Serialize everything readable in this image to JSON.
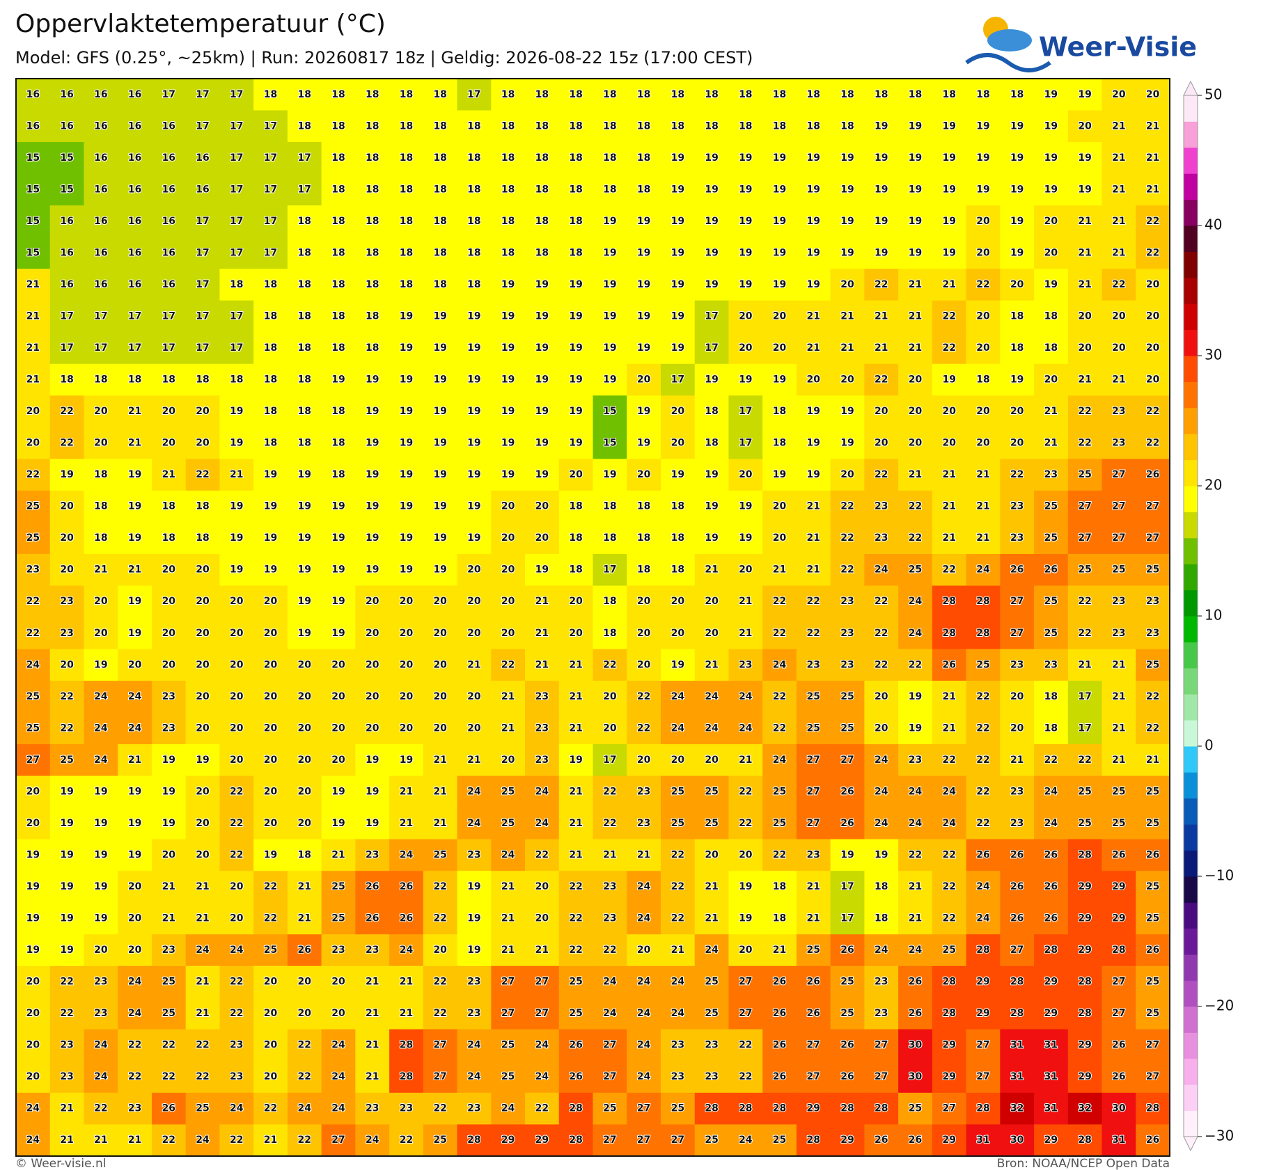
{
  "title": "Oppervlaktetemperatuur (°C)",
  "subtitle": "Model: GFS (0.25°, ~25km)  |  Run: 20260817 18z  |  Geldig: 2026-08-22 15z (17:00 CEST)",
  "logo": "Weer-Visie",
  "footer_left": "© Weer-visie.nl",
  "footer_right": "Bron: NOAA/NCEP Open Data",
  "grid": [
    [
      16,
      16,
      16,
      16,
      17,
      17,
      17,
      18,
      18,
      18,
      18,
      18,
      18,
      17,
      18,
      18,
      18,
      18,
      18,
      18,
      18,
      18,
      18,
      18,
      18,
      18,
      18,
      18,
      18,
      18,
      19,
      19,
      20,
      20
    ],
    [
      16,
      16,
      16,
      16,
      16,
      17,
      17,
      17,
      18,
      18,
      18,
      18,
      18,
      18,
      18,
      18,
      18,
      18,
      18,
      18,
      18,
      18,
      18,
      18,
      18,
      19,
      19,
      19,
      19,
      19,
      19,
      20,
      21,
      21
    ],
    [
      15,
      15,
      16,
      16,
      16,
      16,
      17,
      17,
      17,
      18,
      18,
      18,
      18,
      18,
      18,
      18,
      18,
      18,
      18,
      19,
      19,
      19,
      19,
      19,
      19,
      19,
      19,
      19,
      19,
      19,
      19,
      19,
      21,
      21
    ],
    [
      15,
      15,
      16,
      16,
      16,
      16,
      17,
      17,
      17,
      18,
      18,
      18,
      18,
      18,
      18,
      18,
      18,
      18,
      18,
      19,
      19,
      19,
      19,
      19,
      19,
      19,
      19,
      19,
      19,
      19,
      19,
      19,
      21,
      21
    ],
    [
      15,
      16,
      16,
      16,
      16,
      17,
      17,
      17,
      18,
      18,
      18,
      18,
      18,
      18,
      18,
      18,
      18,
      19,
      19,
      19,
      19,
      19,
      19,
      19,
      19,
      19,
      19,
      19,
      20,
      19,
      20,
      21,
      21,
      22
    ],
    [
      15,
      16,
      16,
      16,
      16,
      17,
      17,
      17,
      18,
      18,
      18,
      18,
      18,
      18,
      18,
      18,
      18,
      19,
      19,
      19,
      19,
      19,
      19,
      19,
      19,
      19,
      19,
      19,
      20,
      19,
      20,
      21,
      21,
      22
    ],
    [
      21,
      16,
      16,
      16,
      16,
      17,
      18,
      18,
      18,
      18,
      18,
      18,
      18,
      18,
      19,
      19,
      19,
      19,
      19,
      19,
      19,
      19,
      19,
      19,
      20,
      22,
      21,
      21,
      22,
      20,
      19,
      21,
      22,
      20
    ],
    [
      21,
      17,
      17,
      17,
      17,
      17,
      17,
      18,
      18,
      18,
      18,
      19,
      19,
      19,
      19,
      19,
      19,
      19,
      19,
      19,
      17,
      20,
      20,
      21,
      21,
      21,
      21,
      22,
      20,
      18,
      18,
      20,
      20,
      20
    ],
    [
      21,
      17,
      17,
      17,
      17,
      17,
      17,
      18,
      18,
      18,
      18,
      19,
      19,
      19,
      19,
      19,
      19,
      19,
      19,
      19,
      17,
      20,
      20,
      21,
      21,
      21,
      21,
      22,
      20,
      18,
      18,
      20,
      20,
      20
    ],
    [
      21,
      18,
      18,
      18,
      18,
      18,
      18,
      18,
      18,
      19,
      19,
      19,
      19,
      19,
      19,
      19,
      19,
      19,
      20,
      17,
      19,
      19,
      19,
      20,
      20,
      22,
      20,
      19,
      18,
      19,
      20,
      21,
      21,
      20
    ],
    [
      20,
      22,
      20,
      21,
      20,
      20,
      19,
      18,
      18,
      18,
      19,
      19,
      19,
      19,
      19,
      19,
      19,
      15,
      19,
      20,
      18,
      17,
      18,
      19,
      19,
      20,
      20,
      20,
      20,
      20,
      21,
      22,
      23,
      22
    ],
    [
      20,
      22,
      20,
      21,
      20,
      20,
      19,
      18,
      18,
      18,
      19,
      19,
      19,
      19,
      19,
      19,
      19,
      15,
      19,
      20,
      18,
      17,
      18,
      19,
      19,
      20,
      20,
      20,
      20,
      20,
      21,
      22,
      23,
      22
    ],
    [
      22,
      19,
      18,
      19,
      21,
      22,
      21,
      19,
      19,
      18,
      19,
      19,
      19,
      19,
      19,
      19,
      20,
      19,
      20,
      19,
      19,
      20,
      19,
      19,
      20,
      22,
      21,
      21,
      21,
      22,
      23,
      25,
      27,
      26
    ],
    [
      25,
      20,
      18,
      19,
      18,
      18,
      19,
      19,
      19,
      19,
      19,
      19,
      19,
      19,
      20,
      20,
      18,
      18,
      18,
      18,
      19,
      19,
      20,
      21,
      22,
      23,
      22,
      21,
      21,
      23,
      25,
      27,
      27,
      27
    ],
    [
      25,
      20,
      18,
      19,
      18,
      18,
      19,
      19,
      19,
      19,
      19,
      19,
      19,
      19,
      20,
      20,
      18,
      18,
      18,
      18,
      19,
      19,
      20,
      21,
      22,
      23,
      22,
      21,
      21,
      23,
      25,
      27,
      27,
      27
    ],
    [
      23,
      20,
      21,
      21,
      20,
      20,
      19,
      19,
      19,
      19,
      19,
      19,
      19,
      20,
      20,
      19,
      18,
      17,
      18,
      18,
      21,
      20,
      21,
      21,
      22,
      24,
      25,
      22,
      24,
      26,
      26,
      25,
      25,
      25
    ],
    [
      22,
      23,
      20,
      19,
      20,
      20,
      20,
      20,
      19,
      19,
      20,
      20,
      20,
      20,
      20,
      21,
      20,
      18,
      20,
      20,
      20,
      21,
      22,
      22,
      23,
      22,
      24,
      28,
      28,
      27,
      25,
      22,
      23,
      23
    ],
    [
      22,
      23,
      20,
      19,
      20,
      20,
      20,
      20,
      19,
      19,
      20,
      20,
      20,
      20,
      20,
      21,
      20,
      18,
      20,
      20,
      20,
      21,
      22,
      22,
      23,
      22,
      24,
      28,
      28,
      27,
      25,
      22,
      23,
      23
    ],
    [
      24,
      20,
      19,
      20,
      20,
      20,
      20,
      20,
      20,
      20,
      20,
      20,
      20,
      21,
      22,
      21,
      21,
      22,
      20,
      19,
      21,
      23,
      24,
      23,
      23,
      22,
      22,
      26,
      25,
      23,
      23,
      21,
      21,
      25
    ],
    [
      25,
      22,
      24,
      24,
      23,
      20,
      20,
      20,
      20,
      20,
      20,
      20,
      20,
      20,
      21,
      23,
      21,
      20,
      22,
      24,
      24,
      24,
      22,
      25,
      25,
      20,
      19,
      21,
      22,
      20,
      18,
      17,
      21,
      22
    ],
    [
      25,
      22,
      24,
      24,
      23,
      20,
      20,
      20,
      20,
      20,
      20,
      20,
      20,
      20,
      21,
      23,
      21,
      20,
      22,
      24,
      24,
      24,
      22,
      25,
      25,
      20,
      19,
      21,
      22,
      20,
      18,
      17,
      21,
      22
    ],
    [
      27,
      25,
      24,
      21,
      19,
      19,
      20,
      20,
      20,
      20,
      19,
      19,
      21,
      21,
      20,
      23,
      19,
      17,
      20,
      20,
      20,
      21,
      24,
      27,
      27,
      24,
      23,
      22,
      22,
      21,
      22,
      22,
      21,
      21
    ],
    [
      20,
      19,
      19,
      19,
      19,
      20,
      22,
      20,
      20,
      19,
      19,
      21,
      21,
      24,
      25,
      24,
      21,
      22,
      23,
      25,
      25,
      22,
      25,
      27,
      26,
      24,
      24,
      24,
      22,
      23,
      24,
      25,
      25,
      25
    ],
    [
      20,
      19,
      19,
      19,
      19,
      20,
      22,
      20,
      20,
      19,
      19,
      21,
      21,
      24,
      25,
      24,
      21,
      22,
      23,
      25,
      25,
      22,
      25,
      27,
      26,
      24,
      24,
      24,
      22,
      23,
      24,
      25,
      25,
      25
    ],
    [
      19,
      19,
      19,
      19,
      20,
      20,
      22,
      19,
      18,
      21,
      23,
      24,
      25,
      23,
      24,
      22,
      21,
      21,
      21,
      22,
      20,
      20,
      22,
      23,
      19,
      19,
      22,
      22,
      26,
      26,
      26,
      28,
      26,
      26
    ],
    [
      19,
      19,
      19,
      20,
      21,
      21,
      20,
      22,
      21,
      25,
      26,
      26,
      22,
      19,
      21,
      20,
      22,
      23,
      24,
      22,
      21,
      19,
      18,
      21,
      17,
      18,
      21,
      22,
      24,
      26,
      26,
      29,
      29,
      25
    ],
    [
      19,
      19,
      19,
      20,
      21,
      21,
      20,
      22,
      21,
      25,
      26,
      26,
      22,
      19,
      21,
      20,
      22,
      23,
      24,
      22,
      21,
      19,
      18,
      21,
      17,
      18,
      21,
      22,
      24,
      26,
      26,
      29,
      29,
      25
    ],
    [
      19,
      19,
      20,
      20,
      23,
      24,
      24,
      25,
      26,
      23,
      23,
      24,
      20,
      19,
      21,
      21,
      22,
      22,
      20,
      21,
      24,
      20,
      21,
      25,
      26,
      24,
      24,
      25,
      28,
      27,
      28,
      29,
      28,
      26
    ],
    [
      20,
      22,
      23,
      24,
      25,
      21,
      22,
      20,
      20,
      20,
      21,
      21,
      22,
      23,
      27,
      27,
      25,
      24,
      24,
      24,
      25,
      27,
      26,
      26,
      25,
      23,
      26,
      28,
      29,
      28,
      29,
      28,
      27,
      25
    ],
    [
      20,
      22,
      23,
      24,
      25,
      21,
      22,
      20,
      20,
      20,
      21,
      21,
      22,
      23,
      27,
      27,
      25,
      24,
      24,
      24,
      25,
      27,
      26,
      26,
      25,
      23,
      26,
      28,
      29,
      28,
      29,
      28,
      27,
      25
    ],
    [
      20,
      23,
      24,
      22,
      22,
      22,
      23,
      20,
      22,
      24,
      21,
      28,
      27,
      24,
      25,
      24,
      26,
      27,
      24,
      23,
      23,
      22,
      26,
      27,
      26,
      27,
      30,
      29,
      27,
      31,
      31,
      29,
      26,
      27
    ],
    [
      20,
      23,
      24,
      22,
      22,
      22,
      23,
      20,
      22,
      24,
      21,
      28,
      27,
      24,
      25,
      24,
      26,
      27,
      24,
      23,
      23,
      22,
      26,
      27,
      26,
      27,
      30,
      29,
      27,
      31,
      31,
      29,
      26,
      27
    ],
    [
      24,
      21,
      22,
      23,
      26,
      25,
      24,
      22,
      24,
      24,
      23,
      23,
      22,
      23,
      24,
      22,
      28,
      25,
      27,
      25,
      28,
      28,
      28,
      29,
      28,
      28,
      25,
      27,
      28,
      32,
      31,
      32,
      30,
      28
    ],
    [
      24,
      21,
      21,
      21,
      22,
      24,
      22,
      21,
      22,
      27,
      24,
      22,
      25,
      28,
      29,
      29,
      28,
      27,
      27,
      27,
      25,
      24,
      25,
      28,
      29,
      26,
      26,
      29,
      31,
      30,
      29,
      28,
      31,
      26
    ]
  ],
  "colorbar": {
    "lim": [
      -30,
      50
    ],
    "ticks": [
      50,
      40,
      30,
      20,
      10,
      0,
      {
        "value": -10,
        "label": "−10"
      },
      {
        "value": -20,
        "label": "−20"
      },
      {
        "value": -30,
        "label": "−30"
      }
    ],
    "colors": [
      "#fff0fc",
      "#fcd0f4",
      "#f8b0ec",
      "#e890e0",
      "#d070d0",
      "#b050c0",
      "#9038b0",
      "#6a1a98",
      "#4a0a80",
      "#180848",
      "#0a1a78",
      "#0a3aa0",
      "#0a5ab8",
      "#0a90d8",
      "#30c8f8",
      "#c8f8d8",
      "#a0e8a8",
      "#78d878",
      "#48c848",
      "#00b800",
      "#009800",
      "#30a800",
      "#70c000",
      "#c8da00",
      "#ffff00",
      "#ffe400",
      "#ffc400",
      "#ffa000",
      "#ff7400",
      "#ff4c00",
      "#f01010",
      "#d00000",
      "#a80000",
      "#800000",
      "#500020",
      "#880060",
      "#c000a0",
      "#f040d0",
      "#f8a0d8",
      "#fde8f8"
    ]
  }
}
